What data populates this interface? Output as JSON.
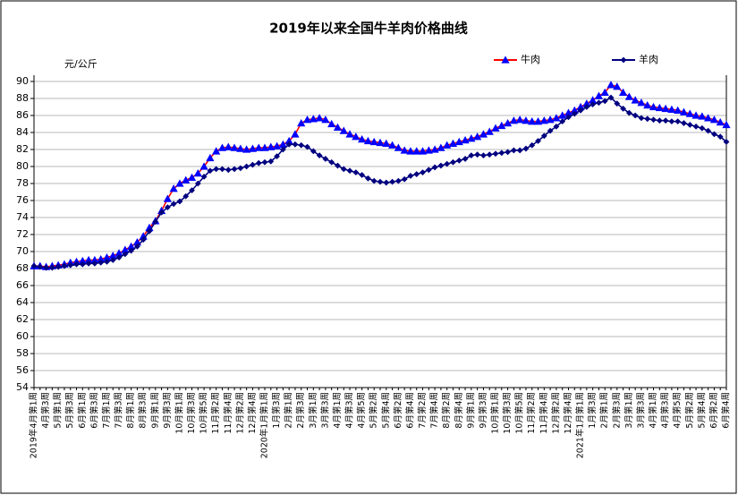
{
  "chart_data": {
    "type": "line",
    "title": "2019年以来全国牛羊肉价格曲线",
    "y_label": "元/公斤",
    "ylim": [
      54,
      90
    ],
    "yticks": [
      54,
      56,
      58,
      60,
      62,
      64,
      66,
      68,
      70,
      72,
      74,
      76,
      78,
      80,
      82,
      84,
      86,
      88,
      90
    ],
    "grid": true,
    "legend": "top-right",
    "categories": [
      "2019年4月第1周",
      null,
      "4月第3周",
      null,
      "5月第1周",
      null,
      "5月第3周",
      null,
      "6月第1周",
      null,
      "6月第3周",
      null,
      "7月第1周",
      null,
      "7月第3周",
      null,
      "8月第1周",
      null,
      "8月第3周",
      null,
      "9月第1周",
      null,
      "9月第3周",
      null,
      "10月第1周",
      null,
      "10月第3周",
      null,
      "10月第5周",
      null,
      "11月第2周",
      null,
      "11月第4周",
      null,
      "12月第2周",
      null,
      "12月第4周",
      null,
      "2020年1月第1周",
      null,
      "1月第3周",
      null,
      "2月第1周",
      null,
      "2月第3周",
      null,
      "3月第1周",
      null,
      "3月第3周",
      null,
      "4月第1周",
      null,
      "4月第3周",
      null,
      "4月第5周",
      null,
      "5月第2周",
      null,
      "5月第4周",
      null,
      "6月第2周",
      null,
      "6月第4周",
      null,
      "7月第2周",
      null,
      "7月第4周",
      null,
      "8月第2周",
      null,
      "8月第4周",
      null,
      "9月第1周",
      null,
      "9月第3周",
      null,
      "10月第1周",
      null,
      "10月第3周",
      null,
      "10月第5周",
      null,
      "11月第2周",
      null,
      "11月第4周",
      null,
      "12月第2周",
      null,
      "12月第4周",
      null,
      "2021年1月第1周",
      null,
      "1月第3周",
      null,
      "2月第1周",
      null,
      "2月第3周",
      null,
      "3月第1周",
      null,
      "3月第3周",
      null,
      "4月第1周",
      null,
      "4月第3周",
      null,
      "4月第5周",
      null,
      "5月第2周",
      null,
      "5月第4周",
      null,
      "6月第2周",
      null,
      "6月第4周"
    ],
    "series": [
      {
        "name": "牛肉",
        "color": "#ff0000",
        "marker": "triangle",
        "marker_color": "#0000ff",
        "values": [
          68.3,
          68.3,
          68.2,
          68.3,
          68.4,
          68.5,
          68.7,
          68.8,
          68.9,
          69.0,
          69.0,
          69.1,
          69.3,
          69.5,
          69.8,
          70.2,
          70.6,
          71.1,
          71.8,
          72.8,
          73.6,
          74.8,
          76.2,
          77.4,
          78.0,
          78.4,
          78.7,
          79.2,
          80.0,
          81.0,
          81.8,
          82.2,
          82.3,
          82.2,
          82.1,
          82.0,
          82.1,
          82.2,
          82.2,
          82.3,
          82.4,
          82.6,
          83.0,
          83.8,
          85.1,
          85.5,
          85.6,
          85.7,
          85.5,
          85.0,
          84.6,
          84.2,
          83.8,
          83.5,
          83.2,
          83.0,
          82.9,
          82.8,
          82.7,
          82.5,
          82.2,
          81.9,
          81.8,
          81.8,
          81.8,
          81.9,
          82.0,
          82.2,
          82.5,
          82.7,
          82.9,
          83.1,
          83.3,
          83.5,
          83.8,
          84.1,
          84.5,
          84.8,
          85.1,
          85.4,
          85.5,
          85.4,
          85.3,
          85.3,
          85.4,
          85.5,
          85.7,
          86.0,
          86.3,
          86.6,
          87.0,
          87.4,
          87.8,
          88.3,
          88.7,
          89.6,
          89.4,
          88.7,
          88.2,
          87.8,
          87.5,
          87.2,
          87.0,
          86.9,
          86.8,
          86.7,
          86.6,
          86.4,
          86.2,
          86.0,
          85.9,
          85.7,
          85.5,
          85.2,
          84.9
        ]
      },
      {
        "name": "羊肉",
        "color": "#000080",
        "marker": "diamond",
        "marker_color": "#000080",
        "values": [
          68.3,
          68.2,
          68.1,
          68.1,
          68.2,
          68.3,
          68.4,
          68.5,
          68.5,
          68.6,
          68.6,
          68.7,
          68.8,
          69.0,
          69.3,
          69.7,
          70.1,
          70.6,
          71.4,
          72.4,
          73.5,
          74.6,
          75.2,
          75.6,
          75.9,
          76.5,
          77.2,
          78.0,
          78.8,
          79.5,
          79.7,
          79.7,
          79.6,
          79.7,
          79.8,
          80.0,
          80.2,
          80.4,
          80.5,
          80.6,
          81.2,
          82.0,
          82.6,
          82.6,
          82.5,
          82.3,
          81.8,
          81.3,
          80.9,
          80.5,
          80.1,
          79.7,
          79.5,
          79.3,
          79.0,
          78.6,
          78.3,
          78.2,
          78.1,
          78.2,
          78.3,
          78.5,
          78.9,
          79.1,
          79.3,
          79.6,
          79.9,
          80.1,
          80.3,
          80.5,
          80.7,
          80.9,
          81.3,
          81.4,
          81.3,
          81.4,
          81.5,
          81.6,
          81.7,
          81.9,
          81.9,
          82.1,
          82.5,
          83.0,
          83.6,
          84.2,
          84.7,
          85.3,
          85.8,
          86.2,
          86.6,
          87.0,
          87.3,
          87.5,
          87.7,
          88.1,
          87.4,
          86.8,
          86.3,
          86.0,
          85.7,
          85.6,
          85.5,
          85.4,
          85.4,
          85.3,
          85.3,
          85.1,
          84.9,
          84.7,
          84.5,
          84.2,
          83.8,
          83.5,
          82.9
        ]
      }
    ]
  }
}
